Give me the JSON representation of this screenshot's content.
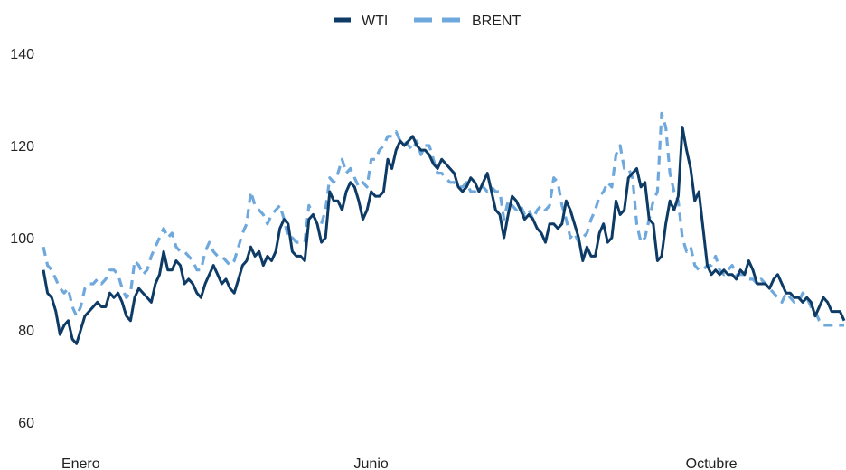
{
  "chart_data": {
    "type": "line",
    "title": "",
    "xlabel": "",
    "ylabel": "",
    "ylim": [
      55,
      142
    ],
    "y_ticks": [
      60,
      80,
      100,
      120,
      140
    ],
    "x_tick_labels": [
      "Enero",
      "Junio",
      "Octubre"
    ],
    "x_tick_index": [
      9,
      79,
      161
    ],
    "legend_position": "top-center",
    "grid": false,
    "series": [
      {
        "name": "WTI",
        "color": "#0d3b66",
        "dash": "solid",
        "values": [
          93,
          88,
          87,
          84,
          79,
          81,
          82,
          78,
          77,
          80,
          83,
          84,
          85,
          86,
          85,
          85,
          88,
          87,
          88,
          86,
          83,
          82,
          87,
          89,
          88,
          87,
          86,
          90,
          92,
          97,
          93,
          93,
          95,
          94,
          90,
          91,
          90,
          88,
          87,
          90,
          92,
          94,
          92,
          90,
          91,
          89,
          88,
          91,
          94,
          95,
          98,
          96,
          97,
          94,
          96,
          95,
          97,
          102,
          104,
          103,
          97,
          96,
          96,
          95,
          104,
          105,
          103,
          99,
          100,
          110,
          108,
          108,
          106,
          110,
          112,
          111,
          108,
          104,
          106,
          110,
          109,
          109,
          110,
          117,
          115,
          119,
          121,
          120,
          121,
          122,
          120,
          119,
          119,
          118,
          116,
          115,
          117,
          116,
          115,
          114,
          111,
          110,
          111,
          113,
          112,
          110,
          112,
          114,
          110,
          106,
          105,
          100,
          105,
          109,
          108,
          106,
          104,
          105,
          104,
          102,
          101,
          99,
          103,
          103,
          102,
          103,
          108,
          106,
          103,
          100,
          95,
          98,
          96,
          96,
          101,
          103,
          99,
          100,
          108,
          105,
          106,
          113,
          114,
          115,
          111,
          112,
          104,
          103,
          95,
          96,
          103,
          108,
          106,
          109,
          124,
          119,
          115,
          108,
          110,
          102,
          94,
          92,
          93,
          92,
          93,
          92,
          92,
          91,
          93,
          92,
          95,
          93,
          90,
          90,
          90,
          89,
          91,
          92,
          90,
          88,
          88,
          87,
          87,
          86,
          87,
          86,
          83,
          85,
          87,
          86,
          84,
          84,
          84,
          82
        ]
      },
      {
        "name": "BRENT",
        "color": "#6fa8dc",
        "dash": "dashed",
        "values": [
          98,
          94,
          93,
          91,
          89,
          88,
          89,
          85,
          83,
          85,
          89,
          90,
          90,
          91,
          90,
          91,
          93,
          93,
          92,
          89,
          87,
          88,
          95,
          94,
          92,
          93,
          96,
          98,
          100,
          102,
          100,
          101,
          98,
          97,
          97,
          96,
          95,
          93,
          93,
          97,
          99,
          97,
          96,
          96,
          95,
          94,
          95,
          98,
          101,
          103,
          110,
          107,
          106,
          105,
          103,
          105,
          106,
          107,
          104,
          100,
          100,
          99,
          99,
          99,
          107,
          105,
          103,
          103,
          106,
          113,
          112,
          114,
          117,
          114,
          115,
          113,
          111,
          112,
          111,
          117,
          117,
          119,
          120,
          122,
          122,
          123,
          121,
          121,
          120,
          119,
          121,
          118,
          120,
          120,
          117,
          114,
          114,
          113,
          112,
          112,
          111,
          111,
          112,
          110,
          110,
          111,
          111,
          110,
          111,
          110,
          110,
          104,
          108,
          107,
          106,
          107,
          105,
          106,
          104,
          106,
          107,
          106,
          107,
          113,
          112,
          107,
          104,
          100,
          101,
          99,
          100,
          101,
          104,
          106,
          109,
          110,
          112,
          111,
          118,
          120,
          115,
          115,
          113,
          103,
          99,
          100,
          104,
          108,
          110,
          127,
          124,
          114,
          110,
          108,
          100,
          97,
          98,
          94,
          93,
          93,
          94,
          94,
          96,
          93,
          92,
          93,
          94,
          92,
          92,
          92,
          91,
          91,
          90,
          91,
          90,
          89,
          88,
          87,
          86,
          88,
          87,
          86,
          86,
          88,
          87,
          85,
          84,
          82,
          81,
          81,
          81,
          81,
          81,
          81
        ]
      }
    ]
  }
}
